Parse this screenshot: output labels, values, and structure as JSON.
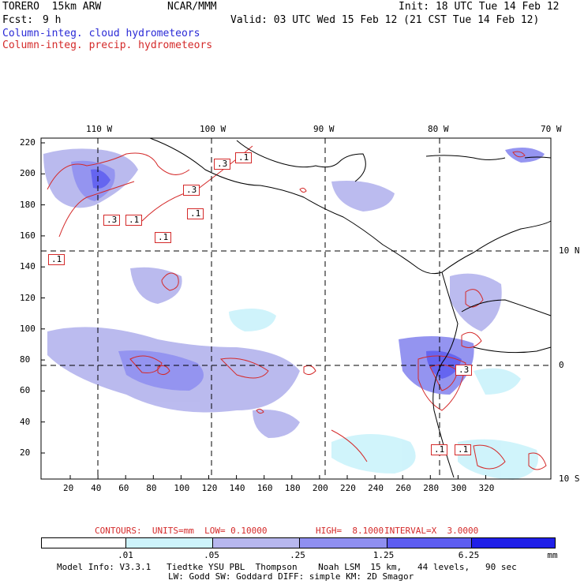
{
  "header": {
    "model_line": "TORERO  15km ARW",
    "org": "NCAR/MMM",
    "init": "Init: 18 UTC Tue 14 Feb 12",
    "fcst_label": "Fcst:",
    "fcst_value": "9 h",
    "valid": "Valid: 03 UTC Wed 15 Feb 12 (21 CST Tue 14 Feb 12)"
  },
  "legend": {
    "cloud": "Column-integ. cloud hydrometeors",
    "precip": "Column-integ. precip. hydrometeors"
  },
  "map": {
    "top_lon_labels": [
      "110 W",
      "100 W",
      "90 W",
      "80 W",
      "70 W"
    ],
    "right_lat_labels": [
      "10 N",
      "0",
      "10 S"
    ],
    "left_ticks": [
      "220",
      "200",
      "180",
      "160",
      "140",
      "120",
      "100",
      "80",
      "60",
      "40",
      "20"
    ],
    "bottom_ticks": [
      "20",
      "40",
      "60",
      "80",
      "100",
      "120",
      "140",
      "160",
      "180",
      "200",
      "220",
      "240",
      "260",
      "280",
      "300",
      "320"
    ],
    "contour_labels": [
      ".1",
      ".3",
      ".1",
      ".1",
      ".3",
      ".1",
      ".3",
      ".1",
      ".1",
      ".3",
      ".1"
    ]
  },
  "contours_line": {
    "units": "CONTOURS:  UNITS=mm  LOW= 0.10000",
    "high": "HIGH=  8.1000",
    "interval": "INTERVAL=X  3.0000"
  },
  "colorbar": {
    "labels": [
      ".01",
      ".05",
      ".25",
      "1.25",
      "6.25",
      "mm"
    ],
    "colors": [
      "#ffffff",
      "#cdf3fb",
      "#b7b7ee",
      "#8f8ff0",
      "#5d5df0",
      "#2020e8"
    ]
  },
  "footer": {
    "line1": "Model Info: V3.3.1   Tiedtke YSU PBL  Thompson    Noah LSM  15 km,   44 levels,   90 sec",
    "line2": "LW: Godd SW: Goddard DIFF: simple KM: 2D Smagor"
  }
}
